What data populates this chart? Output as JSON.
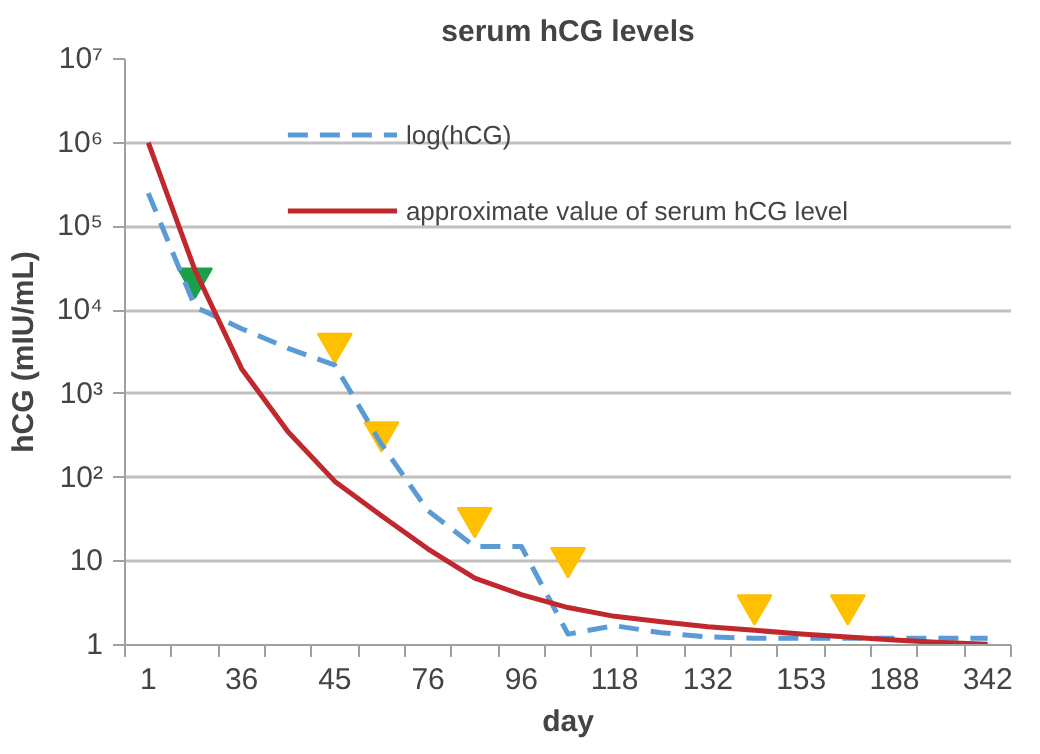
{
  "chart_data": {
    "type": "line",
    "title": "serum hCG levels",
    "xlabel": "day",
    "ylabel": "hCG (mIU/mL)",
    "log": "y",
    "grid": "y",
    "legend": "top",
    "categories": [
      "1",
      null,
      "36",
      null,
      "45",
      null,
      "76",
      null,
      "96",
      null,
      "118",
      null,
      "132",
      null,
      "153",
      null,
      "188",
      null,
      "342"
    ],
    "ylim": [
      1,
      10000000
    ],
    "yticks": [
      1,
      10,
      {
        "value": 100,
        "label": "10²"
      },
      {
        "value": 1000,
        "label": "10³"
      },
      {
        "value": 10000,
        "label": "10⁴"
      },
      {
        "value": 100000,
        "label": "10⁵"
      },
      {
        "value": 1000000,
        "label": "10⁶"
      },
      {
        "value": 10000000,
        "label": "10⁷"
      }
    ],
    "series": [
      {
        "name": "log(hCG)",
        "line_style": "dashed",
        "color": "#5b9bd5",
        "values": [
          250000,
          11000,
          6000,
          3500,
          2200,
          250,
          40,
          15,
          15,
          1.35,
          1.7,
          1.4,
          1.25,
          1.2,
          1.2,
          1.2,
          1.2,
          1.2,
          1.2
        ]
      },
      {
        "name": "approximate value of serum hCG level",
        "line_style": "solid",
        "color": "#c0282d",
        "values": [
          1000000,
          30000,
          2000,
          350,
          90,
          35,
          14,
          6.3,
          4,
          2.8,
          2.2,
          1.9,
          1.65,
          1.5,
          1.35,
          1.25,
          1.15,
          1.07,
          1.02
        ]
      },
      {
        "type": "scatter",
        "marker": "triangle",
        "colors": [
          null,
          "#1aa04a",
          null,
          null,
          "#ffc000",
          "#ffc000",
          null,
          "#ffc000",
          null,
          "#ffc000",
          null,
          null,
          null,
          "#ffc000",
          null,
          "#ffc000",
          null,
          null,
          null
        ],
        "values": [
          null,
          24000,
          null,
          null,
          4000,
          350,
          null,
          33,
          null,
          11,
          null,
          null,
          null,
          3,
          null,
          3,
          null,
          null,
          null
        ]
      }
    ]
  }
}
